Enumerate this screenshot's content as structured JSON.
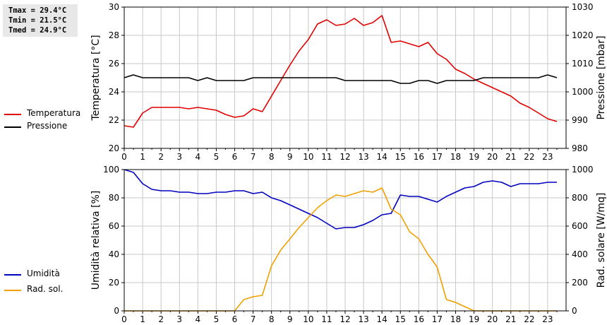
{
  "stats": {
    "tmax": "Tmax = 29.4°C",
    "tmin": "Tmin = 21.5°C",
    "tmed": "Tmed = 24.9°C"
  },
  "legends": {
    "top": [
      {
        "label": "Temperatura",
        "color": "#e00000"
      },
      {
        "label": "Pressione",
        "color": "#000000"
      }
    ],
    "bottom": [
      {
        "label": "Umidità",
        "color": "#0000c0"
      },
      {
        "label": "Rad. sol.",
        "color": "#f0a000"
      }
    ]
  },
  "chart_data": [
    {
      "type": "line",
      "ylabel": "Temperatura [°C]",
      "y2label": "Pressione [mbar]",
      "xlim": [
        0,
        24
      ],
      "ylim": [
        20,
        30
      ],
      "y2lim": [
        980,
        1030
      ],
      "x_ticks": [
        0,
        1,
        2,
        3,
        4,
        5,
        6,
        7,
        8,
        9,
        10,
        11,
        12,
        13,
        14,
        15,
        16,
        17,
        18,
        19,
        20,
        21,
        22,
        23
      ],
      "y_ticks": [
        20,
        22,
        24,
        26,
        28,
        30
      ],
      "y2_ticks": [
        980,
        990,
        1000,
        1010,
        1020,
        1030
      ],
      "grid": true,
      "series": [
        {
          "name": "Temperatura",
          "axis": "left",
          "color": "#e00000",
          "x": [
            0,
            0.5,
            1,
            1.5,
            2,
            2.5,
            3,
            3.5,
            4,
            4.5,
            5,
            5.5,
            6,
            6.5,
            7,
            7.5,
            8,
            8.5,
            9,
            9.5,
            10,
            10.5,
            11,
            11.5,
            12,
            12.5,
            13,
            13.5,
            14,
            14.5,
            15,
            15.5,
            16,
            16.5,
            17,
            17.5,
            18,
            18.5,
            19,
            19.5,
            20,
            20.5,
            21,
            21.5,
            22,
            22.5,
            23,
            23.5
          ],
          "values": [
            21.6,
            21.5,
            22.5,
            22.9,
            22.9,
            22.9,
            22.9,
            22.8,
            22.9,
            22.8,
            22.7,
            22.4,
            22.2,
            22.3,
            22.8,
            22.6,
            23.7,
            24.8,
            25.9,
            26.9,
            27.7,
            28.8,
            29.1,
            28.7,
            28.8,
            29.2,
            28.7,
            28.9,
            29.4,
            27.5,
            27.6,
            27.4,
            27.2,
            27.5,
            26.7,
            26.3,
            25.6,
            25.3,
            24.9,
            24.6,
            24.3,
            24.0,
            23.7,
            23.2,
            22.9,
            22.5,
            22.1,
            21.9
          ]
        },
        {
          "name": "Pressione",
          "axis": "right",
          "color": "#000000",
          "x": [
            0,
            0.5,
            1,
            1.5,
            2,
            2.5,
            3,
            3.5,
            4,
            4.5,
            5,
            5.5,
            6,
            6.5,
            7,
            7.5,
            8,
            8.5,
            9,
            9.5,
            10,
            10.5,
            11,
            11.5,
            12,
            12.5,
            13,
            13.5,
            14,
            14.5,
            15,
            15.5,
            16,
            16.5,
            17,
            17.5,
            18,
            18.5,
            19,
            19.5,
            20,
            20.5,
            21,
            21.5,
            22,
            22.5,
            23,
            23.5
          ],
          "values": [
            1005,
            1006,
            1005,
            1005,
            1005,
            1005,
            1005,
            1005,
            1004,
            1005,
            1004,
            1004,
            1004,
            1004,
            1005,
            1005,
            1005,
            1005,
            1005,
            1005,
            1005,
            1005,
            1005,
            1005,
            1004,
            1004,
            1004,
            1004,
            1004,
            1004,
            1003,
            1003,
            1004,
            1004,
            1003,
            1004,
            1004,
            1004,
            1004,
            1005,
            1005,
            1005,
            1005,
            1005,
            1005,
            1005,
            1006,
            1005
          ]
        }
      ]
    },
    {
      "type": "line",
      "ylabel": "Umidità relativa [%]",
      "y2label": "Rad. solare [W/mq]",
      "xlim": [
        0,
        24
      ],
      "ylim": [
        0,
        100
      ],
      "y2lim": [
        0,
        1000
      ],
      "x_ticks": [
        0,
        1,
        2,
        3,
        4,
        5,
        6,
        7,
        8,
        9,
        10,
        11,
        12,
        13,
        14,
        15,
        16,
        17,
        18,
        19,
        20,
        21,
        22,
        23
      ],
      "y_ticks": [
        0,
        20,
        40,
        60,
        80,
        100
      ],
      "y2_ticks": [
        0,
        200,
        400,
        600,
        800,
        1000
      ],
      "grid": true,
      "series": [
        {
          "name": "Umidità",
          "axis": "left",
          "color": "#0000c0",
          "x": [
            0,
            0.5,
            1,
            1.5,
            2,
            2.5,
            3,
            3.5,
            4,
            4.5,
            5,
            5.5,
            6,
            6.5,
            7,
            7.5,
            8,
            8.5,
            9,
            9.5,
            10,
            10.5,
            11,
            11.5,
            12,
            12.5,
            13,
            13.5,
            14,
            14.5,
            15,
            15.5,
            16,
            16.5,
            17,
            17.5,
            18,
            18.5,
            19,
            19.5,
            20,
            20.5,
            21,
            21.5,
            22,
            22.5,
            23,
            23.5
          ],
          "values": [
            100,
            98,
            90,
            86,
            85,
            85,
            84,
            84,
            83,
            83,
            84,
            84,
            85,
            85,
            83,
            84,
            80,
            78,
            75,
            72,
            69,
            66,
            62,
            58,
            59,
            59,
            61,
            64,
            68,
            69,
            82,
            81,
            81,
            79,
            77,
            81,
            84,
            87,
            88,
            91,
            92,
            91,
            88,
            90,
            90,
            90,
            91,
            91
          ]
        },
        {
          "name": "Rad. sol.",
          "axis": "right",
          "color": "#f0a000",
          "x": [
            0,
            0.5,
            1,
            1.5,
            2,
            2.5,
            3,
            3.5,
            4,
            4.5,
            5,
            5.5,
            6,
            6.5,
            7,
            7.5,
            8,
            8.5,
            9,
            9.5,
            10,
            10.5,
            11,
            11.5,
            12,
            12.5,
            13,
            13.5,
            14,
            14.5,
            15,
            15.5,
            16,
            16.5,
            17,
            17.5,
            18,
            18.5,
            19,
            19.5,
            20,
            20.5,
            21,
            21.5,
            22,
            22.5,
            23,
            23.5
          ],
          "values": [
            0,
            0,
            0,
            0,
            0,
            0,
            0,
            0,
            0,
            0,
            0,
            0,
            0,
            80,
            100,
            110,
            320,
            430,
            510,
            590,
            660,
            730,
            780,
            820,
            810,
            830,
            850,
            840,
            870,
            720,
            680,
            560,
            510,
            400,
            310,
            80,
            60,
            30,
            0,
            0,
            0,
            0,
            0,
            0,
            0,
            0,
            0,
            0
          ]
        }
      ]
    }
  ]
}
